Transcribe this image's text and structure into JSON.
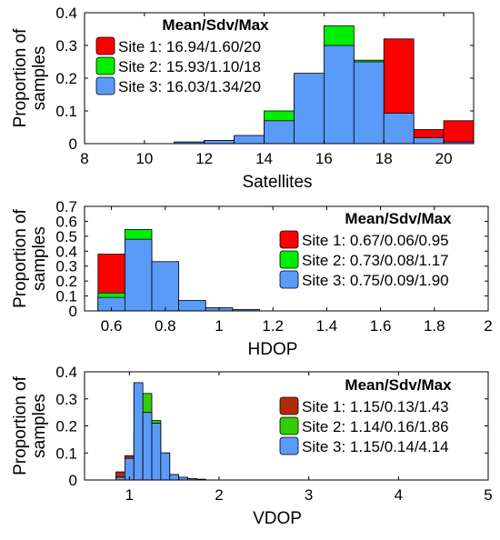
{
  "chart_data": [
    {
      "type": "bar",
      "xlabel": "Satellites",
      "ylabel": "Proportion of samples",
      "xlim": [
        8,
        21
      ],
      "ylim": [
        0,
        0.4
      ],
      "xticks": [
        8,
        10,
        12,
        14,
        16,
        18,
        20
      ],
      "xtick_labels": [
        "8",
        "10",
        "12",
        "14",
        "16",
        "18",
        "20"
      ],
      "yticks": [
        0,
        0.1,
        0.2,
        0.3,
        0.4
      ],
      "ytick_labels": [
        "0",
        "0.1",
        "0.2",
        "0.3",
        "0.4"
      ],
      "bin_width": 1,
      "legend": {
        "title": "Mean/Sdv/Max",
        "position": "top-left",
        "entries": [
          "Site 1: 16.94/1.60/20",
          "Site 2: 15.93/1.10/18",
          "Site 3: 16.03/1.34/20"
        ]
      },
      "series": [
        {
          "color": "#ff0000",
          "bins": [
            10,
            11,
            12,
            13,
            14,
            15,
            16,
            17,
            18,
            19,
            20
          ],
          "values": [
            0.0,
            0.0,
            0.0,
            0.01,
            0.03,
            0.113,
            0.193,
            0.178,
            0.32,
            0.043,
            0.07
          ]
        },
        {
          "color": "#00ee00",
          "bins": [
            10,
            11,
            12,
            13,
            14,
            15,
            16,
            17,
            18,
            19,
            20
          ],
          "values": [
            0.0,
            0.005,
            0.01,
            0.02,
            0.1,
            0.195,
            0.36,
            0.255,
            0.063,
            0.0,
            0.0
          ]
        },
        {
          "color": "#5b9bf8",
          "bins": [
            10,
            11,
            12,
            13,
            14,
            15,
            16,
            17,
            18,
            19,
            20
          ],
          "values": [
            0.0,
            0.005,
            0.01,
            0.025,
            0.07,
            0.215,
            0.3,
            0.25,
            0.093,
            0.018,
            0.005
          ]
        }
      ]
    },
    {
      "type": "bar",
      "xlabel": "HDOP",
      "ylabel": "Proportion of samples",
      "xlim": [
        0.5,
        2.0
      ],
      "ylim": [
        0,
        0.7
      ],
      "xticks": [
        0.6,
        0.8,
        1.0,
        1.2,
        1.4,
        1.6,
        1.8,
        2.0
      ],
      "xtick_labels": [
        "0.6",
        "0.8",
        "1",
        "1.2",
        "1.4",
        "1.6",
        "1.8",
        "2"
      ],
      "yticks": [
        0,
        0.1,
        0.2,
        0.3,
        0.4,
        0.5,
        0.6,
        0.7
      ],
      "ytick_labels": [
        "0",
        "0.1",
        "0.2",
        "0.3",
        "0.4",
        "0.5",
        "0.6",
        "0.7"
      ],
      "bin_width": 0.1,
      "legend": {
        "title": "Mean/Sdv/Max",
        "position": "top-right",
        "entries": [
          "Site 1: 0.67/0.06/0.95",
          "Site 2: 0.73/0.08/1.17",
          "Site 3: 0.75/0.09/1.90"
        ]
      },
      "series": [
        {
          "color": "#ff0000",
          "bins": [
            0.55,
            0.65,
            0.75,
            0.85,
            0.95
          ],
          "values": [
            0.38,
            0.39,
            0.12,
            0.01,
            0.0
          ]
        },
        {
          "color": "#00ee00",
          "bins": [
            0.55,
            0.65,
            0.75,
            0.85,
            0.95,
            1.05
          ],
          "values": [
            0.12,
            0.545,
            0.26,
            0.06,
            0.02,
            0.005
          ]
        },
        {
          "color": "#5b9bf8",
          "bins": [
            0.55,
            0.65,
            0.75,
            0.85,
            0.95,
            1.05
          ],
          "values": [
            0.09,
            0.48,
            0.33,
            0.07,
            0.02,
            0.01
          ]
        }
      ]
    },
    {
      "type": "bar",
      "xlabel": "VDOP",
      "ylabel": "Proportion of samples",
      "xlim": [
        0.5,
        5.0
      ],
      "ylim": [
        0,
        0.4
      ],
      "xticks": [
        1,
        2,
        3,
        4,
        5
      ],
      "xtick_labels": [
        "1",
        "2",
        "3",
        "4",
        "5"
      ],
      "yticks": [
        0,
        0.1,
        0.2,
        0.3,
        0.4
      ],
      "ytick_labels": [
        "0",
        "0.1",
        "0.2",
        "0.3",
        "0.4"
      ],
      "bin_width": 0.1,
      "legend": {
        "title": "Mean/Sdv/Max",
        "position": "top-right",
        "entries": [
          "Site 1: 1.15/0.13/1.43",
          "Site 2: 1.14/0.16/1.86",
          "Site 3: 1.15/0.14/4.14"
        ]
      },
      "series": [
        {
          "color": "#b22a0a",
          "bins": [
            0.85,
            0.95,
            1.05,
            1.15,
            1.25,
            1.35
          ],
          "values": [
            0.03,
            0.09,
            0.18,
            0.22,
            0.12,
            0.02
          ]
        },
        {
          "color": "#33cc00",
          "bins": [
            0.85,
            0.95,
            1.05,
            1.15,
            1.25,
            1.35,
            1.45,
            1.55,
            1.65
          ],
          "values": [
            0.01,
            0.07,
            0.35,
            0.32,
            0.22,
            0.1,
            0.02,
            0.01,
            0.005
          ]
        },
        {
          "color": "#5b9bf8",
          "bins": [
            0.85,
            0.95,
            1.05,
            1.15,
            1.25,
            1.35,
            1.45,
            1.55,
            1.65,
            1.75
          ],
          "values": [
            0.01,
            0.08,
            0.36,
            0.25,
            0.21,
            0.1,
            0.02,
            0.01,
            0.005,
            0.003
          ]
        }
      ]
    }
  ]
}
